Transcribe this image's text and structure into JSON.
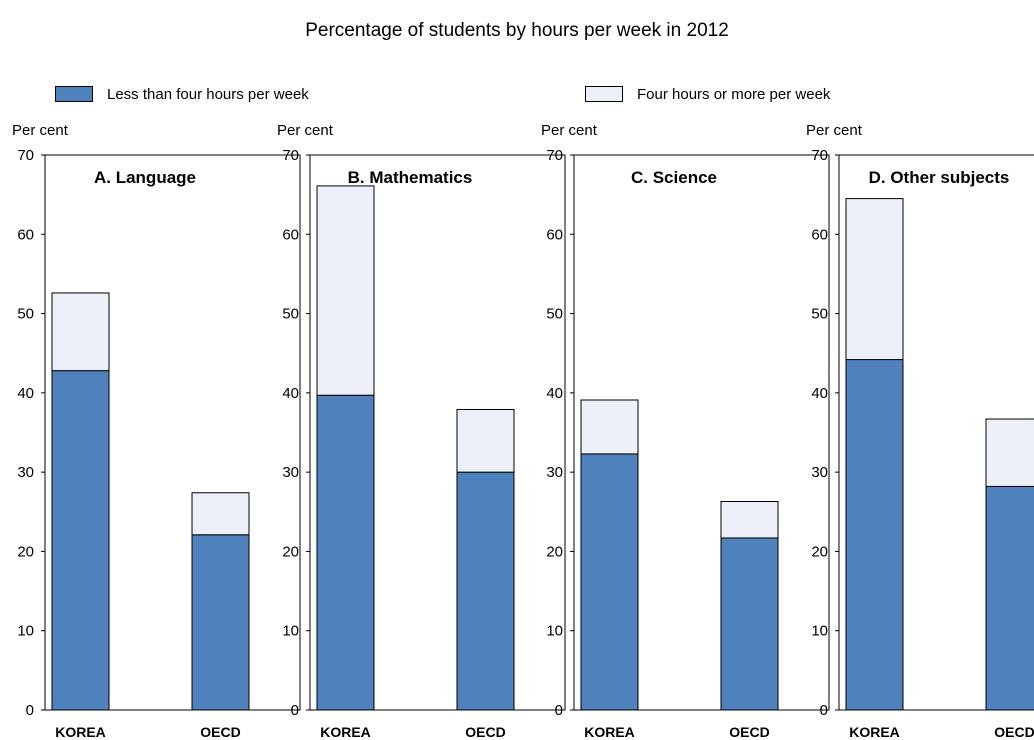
{
  "title": "Percentage of students by hours per week in 2012",
  "legend": [
    {
      "label": "Less than four hours per week",
      "color": "#4f81bd"
    },
    {
      "label": "Four hours or more per week",
      "color": "#eef0f9"
    }
  ],
  "colors": {
    "low": "#4f81bd",
    "high": "#eef0f9",
    "axis": "#000000"
  },
  "chart_data": [
    {
      "type": "bar",
      "title": "A. Language",
      "ylabel": "Per cent",
      "ylim": [
        0,
        70
      ],
      "yticks": [
        0,
        10,
        20,
        30,
        40,
        50,
        60,
        70
      ],
      "categories": [
        "KOREA",
        "OECD"
      ],
      "series": [
        {
          "name": "Less than four hours per week",
          "values": [
            42.8,
            22.1
          ]
        },
        {
          "name": "Four hours or more per week",
          "values": [
            9.8,
            5.3
          ]
        }
      ]
    },
    {
      "type": "bar",
      "title": "B. Mathematics",
      "ylabel": "Per cent",
      "ylim": [
        0,
        70
      ],
      "yticks": [
        0,
        10,
        20,
        30,
        40,
        50,
        60,
        70
      ],
      "categories": [
        "KOREA",
        "OECD"
      ],
      "series": [
        {
          "name": "Less than four hours per week",
          "values": [
            39.7,
            30.0
          ]
        },
        {
          "name": "Four hours or more per week",
          "values": [
            26.4,
            7.9
          ]
        }
      ]
    },
    {
      "type": "bar",
      "title": "C. Science",
      "ylabel": "Per cent",
      "ylim": [
        0,
        70
      ],
      "yticks": [
        0,
        10,
        20,
        30,
        40,
        50,
        60,
        70
      ],
      "categories": [
        "KOREA",
        "OECD"
      ],
      "series": [
        {
          "name": "Less than four hours per week",
          "values": [
            32.3,
            21.7
          ]
        },
        {
          "name": "Four hours or more per week",
          "values": [
            6.8,
            4.6
          ]
        }
      ]
    },
    {
      "type": "bar",
      "title": "D. Other subjects",
      "ylabel": "Per cent",
      "ylim": [
        0,
        70
      ],
      "yticks": [
        0,
        10,
        20,
        30,
        40,
        50,
        60,
        70
      ],
      "categories": [
        "KOREA",
        "OECD"
      ],
      "series": [
        {
          "name": "Less than four hours per week",
          "values": [
            44.2,
            28.2
          ]
        },
        {
          "name": "Four hours or more per week",
          "values": [
            20.3,
            8.5
          ]
        }
      ]
    }
  ]
}
